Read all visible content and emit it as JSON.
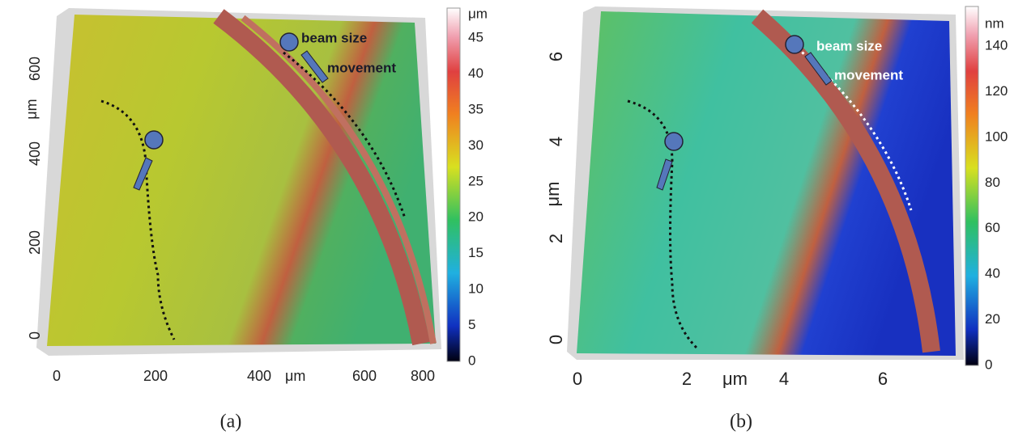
{
  "panels": [
    {
      "caption": "(a)",
      "y_axis": {
        "label": "μm",
        "ticks": [
          "0",
          "200",
          "400",
          "600"
        ]
      },
      "x_axis": {
        "label": "μm",
        "ticks": [
          "0",
          "200",
          "400",
          "600",
          "800"
        ]
      },
      "colorbar": {
        "unit": "μm",
        "ticks": [
          "45",
          "40",
          "35",
          "30",
          "25",
          "20",
          "15",
          "10",
          "5",
          "0"
        ]
      },
      "annotations": [
        "beam size",
        "movement"
      ]
    },
    {
      "caption": "(b)",
      "y_axis": {
        "label": "μm",
        "ticks": [
          "0",
          "2",
          "4",
          "6"
        ]
      },
      "x_axis": {
        "label": "μm",
        "ticks": [
          "0",
          "2",
          "4",
          "6"
        ]
      },
      "colorbar": {
        "unit": "nm",
        "ticks": [
          "140",
          "120",
          "100",
          "80",
          "60",
          "40",
          "20",
          "0"
        ]
      },
      "annotations": [
        "beam size",
        "movement"
      ]
    }
  ]
}
